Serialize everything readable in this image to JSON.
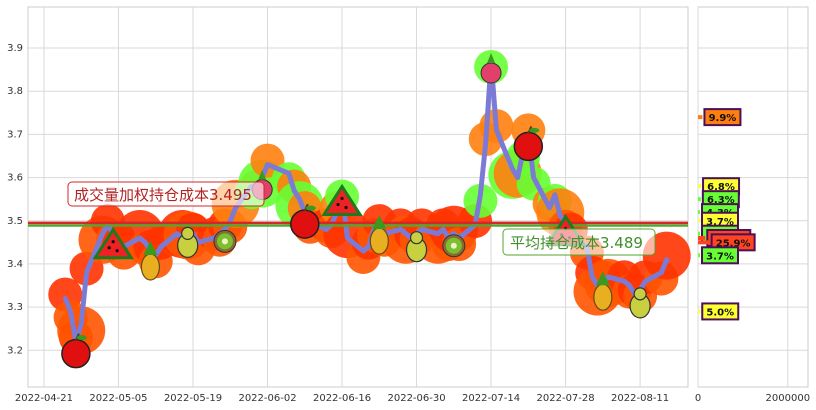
{
  "chart_data": [
    {
      "type": "line",
      "title": "",
      "xlabel": "",
      "ylabel": "",
      "grid": true,
      "x_ticks": [
        "2022-04-21",
        "2022-05-05",
        "2022-05-19",
        "2022-06-02",
        "2022-06-16",
        "2022-06-30",
        "2022-07-14",
        "2022-07-28",
        "2022-08-11"
      ],
      "y_ticks": [
        "3.2",
        "3.3",
        "3.4",
        "3.5",
        "3.6",
        "3.7",
        "3.8",
        "3.9"
      ],
      "xlim": [
        "2022-04-18",
        "2022-08-20"
      ],
      "ylim": [
        3.115,
        3.995
      ],
      "series": [
        {
          "name": "",
          "color": "#7b7bd6",
          "points": [
            [
              "2022-04-25",
              3.32
            ],
            [
              "2022-04-26",
              3.29
            ],
            [
              "2022-04-27",
              3.22
            ],
            [
              "2022-04-28",
              3.26
            ],
            [
              "2022-04-29",
              3.38
            ],
            [
              "2022-05-02",
              3.47
            ],
            [
              "2022-05-03",
              3.49
            ],
            [
              "2022-05-04",
              3.47
            ],
            [
              "2022-05-05",
              3.45
            ],
            [
              "2022-05-06",
              3.44
            ],
            [
              "2022-05-09",
              3.46
            ],
            [
              "2022-05-10",
              3.45
            ],
            [
              "2022-05-11",
              3.43
            ],
            [
              "2022-05-12",
              3.42
            ],
            [
              "2022-05-13",
              3.44
            ],
            [
              "2022-05-16",
              3.47
            ],
            [
              "2022-05-17",
              3.46
            ],
            [
              "2022-05-18",
              3.48
            ],
            [
              "2022-05-19",
              3.47
            ],
            [
              "2022-05-20",
              3.45
            ],
            [
              "2022-05-23",
              3.46
            ],
            [
              "2022-05-24",
              3.47
            ],
            [
              "2022-05-25",
              3.48
            ],
            [
              "2022-05-26",
              3.5
            ],
            [
              "2022-05-27",
              3.53
            ],
            [
              "2022-05-30",
              3.58
            ],
            [
              "2022-05-31",
              3.57
            ],
            [
              "2022-06-01",
              3.6
            ],
            [
              "2022-06-02",
              3.63
            ],
            [
              "2022-06-06",
              3.61
            ],
            [
              "2022-06-07",
              3.57
            ],
            [
              "2022-06-08",
              3.55
            ],
            [
              "2022-06-09",
              3.52
            ],
            [
              "2022-06-10",
              3.5
            ],
            [
              "2022-06-13",
              3.48
            ],
            [
              "2022-06-14",
              3.49
            ],
            [
              "2022-06-15",
              3.52
            ],
            [
              "2022-06-16",
              3.57
            ],
            [
              "2022-06-17",
              3.46
            ],
            [
              "2022-06-20",
              3.43
            ],
            [
              "2022-06-21",
              3.44
            ],
            [
              "2022-06-22",
              3.48
            ],
            [
              "2022-06-23",
              3.49
            ],
            [
              "2022-06-24",
              3.47
            ],
            [
              "2022-06-27",
              3.48
            ],
            [
              "2022-06-28",
              3.47
            ],
            [
              "2022-06-29",
              3.46
            ],
            [
              "2022-06-30",
              3.47
            ],
            [
              "2022-07-01",
              3.48
            ],
            [
              "2022-07-04",
              3.47
            ],
            [
              "2022-07-05",
              3.48
            ],
            [
              "2022-07-06",
              3.46
            ],
            [
              "2022-07-07",
              3.47
            ],
            [
              "2022-07-08",
              3.46
            ],
            [
              "2022-07-11",
              3.49
            ],
            [
              "2022-07-12",
              3.56
            ],
            [
              "2022-07-13",
              3.68
            ],
            [
              "2022-07-14",
              3.87
            ],
            [
              "2022-07-15",
              3.71
            ],
            [
              "2022-07-18",
              3.62
            ],
            [
              "2022-07-19",
              3.6
            ],
            [
              "2022-07-20",
              3.66
            ],
            [
              "2022-07-21",
              3.7
            ],
            [
              "2022-07-22",
              3.6
            ],
            [
              "2022-07-25",
              3.53
            ],
            [
              "2022-07-26",
              3.56
            ],
            [
              "2022-07-27",
              3.51
            ],
            [
              "2022-07-28",
              3.5
            ],
            [
              "2022-07-29",
              3.47
            ],
            [
              "2022-08-01",
              3.44
            ],
            [
              "2022-08-02",
              3.37
            ],
            [
              "2022-08-03",
              3.35
            ],
            [
              "2022-08-04",
              3.36
            ],
            [
              "2022-08-05",
              3.37
            ],
            [
              "2022-08-08",
              3.36
            ],
            [
              "2022-08-09",
              3.35
            ],
            [
              "2022-08-10",
              3.33
            ],
            [
              "2022-08-11",
              3.34
            ],
            [
              "2022-08-12",
              3.36
            ],
            [
              "2022-08-15",
              3.38
            ],
            [
              "2022-08-16",
              3.41
            ]
          ]
        }
      ],
      "reference_lines": [
        {
          "value": 3.495,
          "color": "#d62728",
          "label": "成交量加权持仓成本3.495"
        },
        {
          "value": 3.489,
          "color": "#55a630",
          "label": "平均持仓成本3.489"
        }
      ]
    },
    {
      "type": "bar",
      "orientation": "horizontal",
      "title": "",
      "x_ticks": [
        "0",
        "2000000"
      ],
      "xlim": [
        0,
        2450000
      ],
      "ylim": [
        3.115,
        3.995
      ],
      "labels": [
        "9.9%",
        "6.8%",
        "6.3%",
        "4.3%",
        "3.7%",
        "4.1%",
        "16.2%",
        "25.9%",
        "3.7%",
        "5.0%"
      ],
      "values": [
        {
          "y": 3.74,
          "value": 99000
        },
        {
          "y": 3.58,
          "value": 68000
        },
        {
          "y": 3.55,
          "value": 63000
        },
        {
          "y": 3.52,
          "value": 43000
        },
        {
          "y": 3.5,
          "value": 37000
        },
        {
          "y": 3.47,
          "value": 41000
        },
        {
          "y": 3.46,
          "value": 162000
        },
        {
          "y": 3.45,
          "value": 259000
        },
        {
          "y": 3.42,
          "value": 37000
        },
        {
          "y": 3.29,
          "value": 50000
        }
      ],
      "badge_colors": [
        "#ff7f0e",
        "#ffff33",
        "#66ff33",
        "#66ff33",
        "#ffff33",
        "#66ff33",
        "#ff4422",
        "#ff4422",
        "#66ff33",
        "#ffff33"
      ]
    }
  ]
}
